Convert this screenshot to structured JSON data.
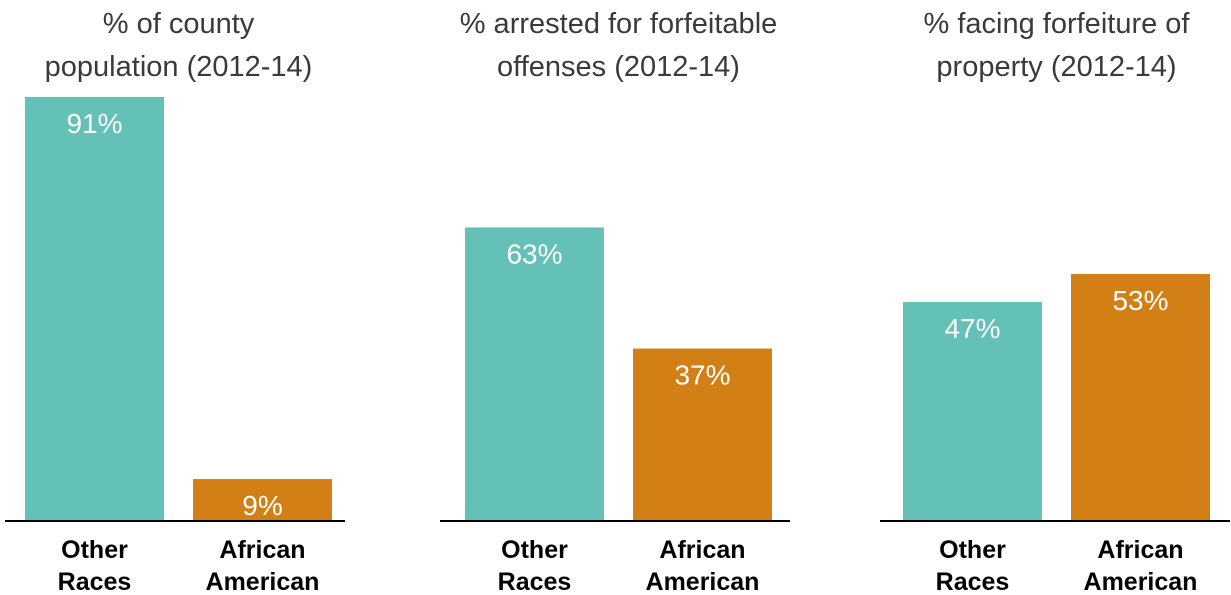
{
  "chart_data": [
    {
      "type": "bar",
      "title": [
        "% of county",
        "population (2012-14)"
      ],
      "categories": [
        [
          "Other",
          "Races"
        ],
        [
          "African",
          "American"
        ]
      ],
      "values": [
        91,
        9
      ],
      "value_labels": [
        "91%",
        "9%"
      ],
      "colors": [
        "#63c1b7",
        "#d27f16"
      ],
      "ylim": [
        0,
        100
      ]
    },
    {
      "type": "bar",
      "title": [
        "% arrested for forfeitable",
        "offenses (2012-14)"
      ],
      "categories": [
        [
          "Other",
          "Races"
        ],
        [
          "African",
          "American"
        ]
      ],
      "values": [
        63,
        37
      ],
      "value_labels": [
        "63%",
        "37%"
      ],
      "colors": [
        "#63c1b7",
        "#d27f16"
      ],
      "ylim": [
        0,
        100
      ]
    },
    {
      "type": "bar",
      "title": [
        "% facing forfeiture of",
        "property (2012-14)"
      ],
      "categories": [
        [
          "Other",
          "Races"
        ],
        [
          "African",
          "American"
        ]
      ],
      "values": [
        47,
        53
      ],
      "value_labels": [
        "47%",
        "53%"
      ],
      "colors": [
        "#63c1b7",
        "#d27f16"
      ],
      "ylim": [
        0,
        100
      ]
    }
  ]
}
